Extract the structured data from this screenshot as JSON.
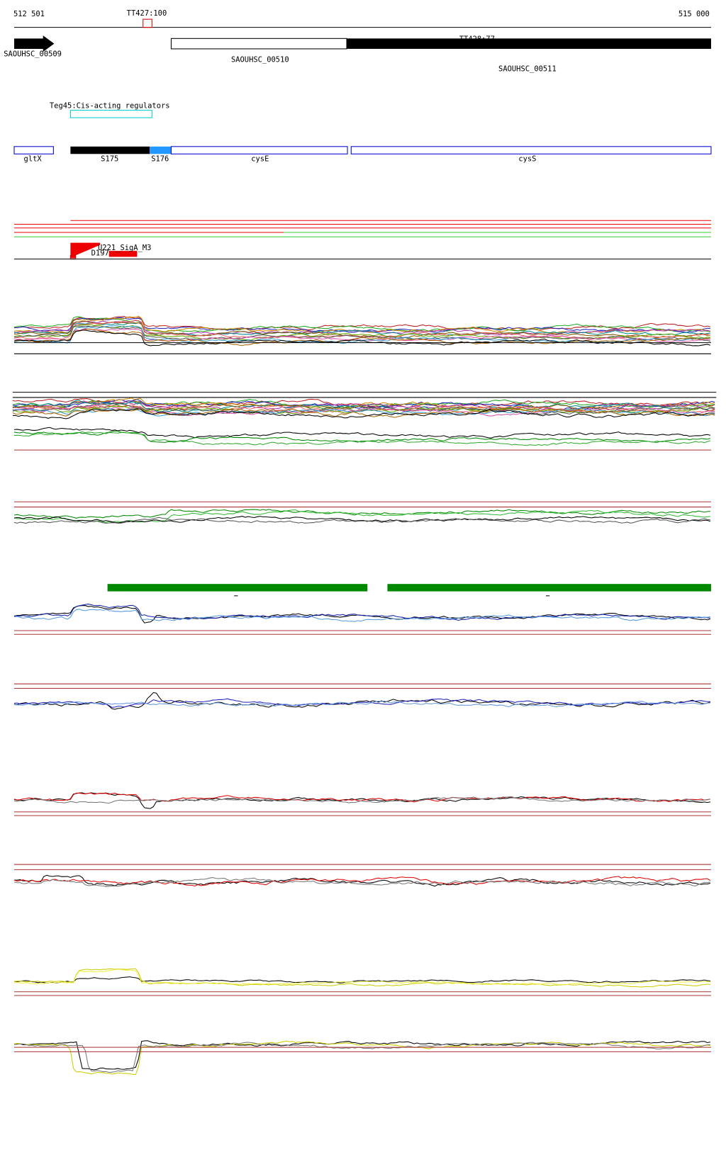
{
  "ruler": {
    "start": "512 501",
    "end": "515 000",
    "marker": "TT427:100"
  },
  "genes": [
    {
      "label": "SAOUHSC_00509"
    },
    {
      "label": "SAOUHSC_00510"
    },
    {
      "label": "SAOUHSC_00511"
    },
    {
      "label": "TT428:77"
    }
  ],
  "regulator": {
    "label": "Teg45:Cis-acting regulators"
  },
  "features": [
    {
      "label": "gltX"
    },
    {
      "label": "S175"
    },
    {
      "label": "S176"
    },
    {
      "label": "cysE"
    },
    {
      "label": "cysS"
    }
  ],
  "sites": [
    {
      "label": "U221_SigA_M3"
    },
    {
      "label": "D197"
    }
  ]
}
